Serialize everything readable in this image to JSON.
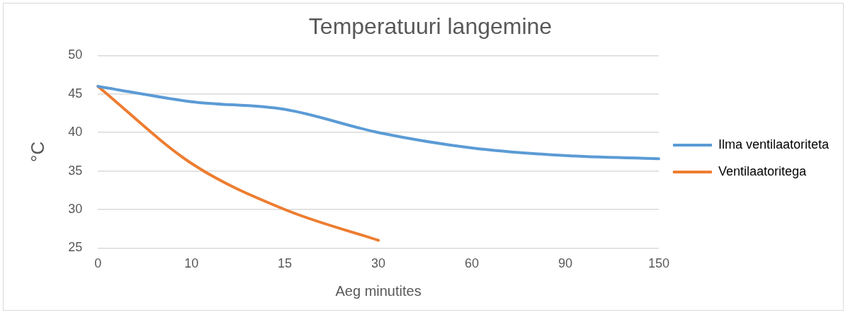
{
  "chart_data": {
    "type": "line",
    "title": "Temperatuuri langemine",
    "xlabel": "Aeg minutites",
    "ylabel": "°C",
    "categories": [
      "0",
      "10",
      "15",
      "30",
      "60",
      "90",
      "150"
    ],
    "series": [
      {
        "name": "Ilma ventilaatoriteta",
        "color": "#5b9bd5",
        "values": [
          46,
          44,
          43,
          40,
          38,
          37,
          36.6
        ]
      },
      {
        "name": "Ventilaatoritega",
        "color": "#ed7d31",
        "values": [
          46,
          36,
          30,
          26,
          null,
          null,
          null
        ]
      }
    ],
    "ylim": [
      25,
      50
    ],
    "yticks": [
      25,
      30,
      35,
      40,
      45,
      50
    ],
    "grid": "y",
    "legend": "right",
    "marker": "none",
    "line_style": "solid"
  }
}
